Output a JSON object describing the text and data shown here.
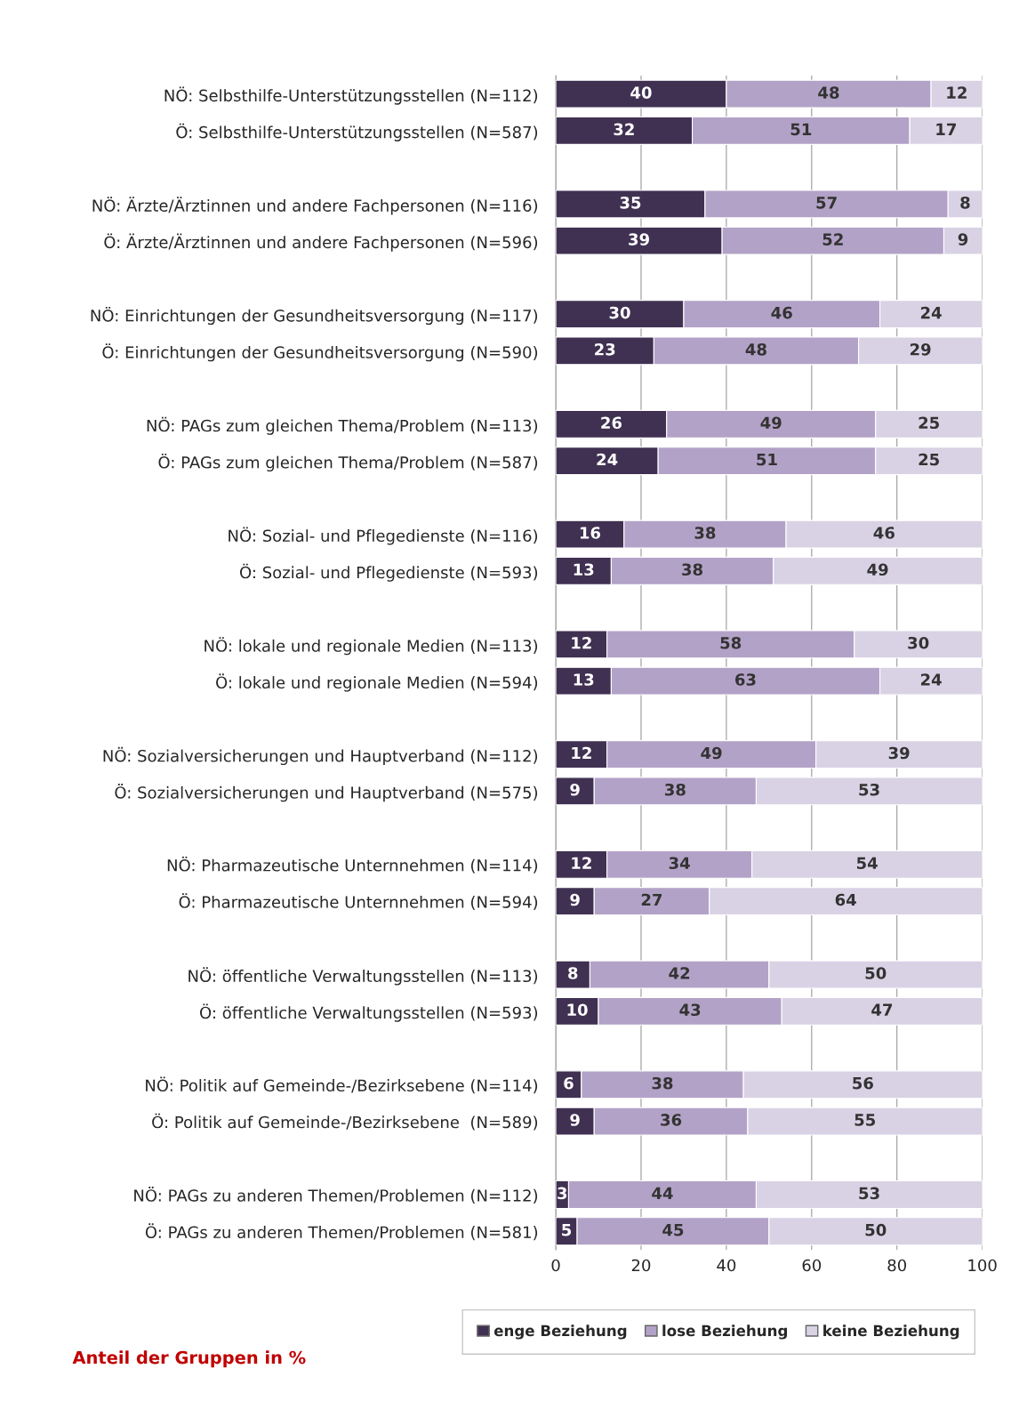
{
  "chart_data": {
    "type": "bar",
    "orientation": "horizontal",
    "stacked": true,
    "categories": [
      "NÖ: Selbsthilfe-Unterstützungsstellen (N=112)",
      "Ö: Selbsthilfe-Unterstützungsstellen (N=587)",
      null,
      "NÖ: Ärzte/Ärztinnen und andere Fachpersonen (N=116)",
      "Ö: Ärzte/Ärztinnen und andere Fachpersonen (N=596)",
      null,
      "NÖ: Einrichtungen der Gesundheitsversorgung (N=117)",
      "Ö: Einrichtungen der Gesundheitsversorgung (N=590)",
      null,
      "NÖ: PAGs zum gleichen Thema/Problem (N=113)",
      "Ö: PAGs zum gleichen Thema/Problem (N=587)",
      null,
      "NÖ: Sozial- und Pflegedienste (N=116)",
      "Ö: Sozial- und Pflegedienste (N=593)",
      null,
      "NÖ: lokale und regionale Medien (N=113)",
      "Ö: lokale und regionale Medien (N=594)",
      null,
      "NÖ: Sozialversicherungen und Hauptverband (N=112)",
      "Ö: Sozialversicherungen und Hauptverband (N=575)",
      null,
      "NÖ: Pharmazeutische Unternnehmen (N=114)",
      "Ö: Pharmazeutische Unternnehmen (N=594)",
      null,
      "NÖ: öffentliche Verwaltungsstellen (N=113)",
      "Ö: öffentliche Verwaltungsstellen (N=593)",
      null,
      "NÖ: Politik auf Gemeinde-/Bezirksebene (N=114)",
      "Ö: Politik auf Gemeinde-/Bezirksebene  (N=589)",
      null,
      "NÖ: PAGs zu anderen Themen/Problemen (N=112)",
      "Ö: PAGs zu anderen Themen/Problemen (N=581)"
    ],
    "series": [
      {
        "name": "enge Beziehung",
        "color": "#403152",
        "values": [
          40,
          32,
          null,
          35,
          39,
          null,
          30,
          23,
          null,
          26,
          24,
          null,
          16,
          13,
          null,
          12,
          13,
          null,
          12,
          9,
          null,
          12,
          9,
          null,
          8,
          10,
          null,
          6,
          9,
          null,
          3,
          5
        ]
      },
      {
        "name": "lose Beziehung",
        "color": "#b3a2c7",
        "values": [
          48,
          51,
          null,
          57,
          52,
          null,
          46,
          48,
          null,
          49,
          51,
          null,
          38,
          38,
          null,
          58,
          63,
          null,
          49,
          38,
          null,
          34,
          27,
          null,
          42,
          43,
          null,
          38,
          36,
          null,
          44,
          45
        ]
      },
      {
        "name": "keine Beziehung",
        "color": "#d9d2e5",
        "values": [
          12,
          17,
          null,
          8,
          9,
          null,
          24,
          29,
          null,
          25,
          25,
          null,
          46,
          49,
          null,
          30,
          24,
          null,
          39,
          53,
          null,
          54,
          64,
          null,
          50,
          47,
          null,
          56,
          55,
          null,
          53,
          50
        ]
      }
    ],
    "xlim": [
      0,
      100
    ],
    "xticks": [
      0,
      20,
      40,
      60,
      80,
      100
    ],
    "grid": "x",
    "legend": "bottom",
    "data_labels": true,
    "annotations": [
      "Anteil der Gruppen in %"
    ]
  }
}
